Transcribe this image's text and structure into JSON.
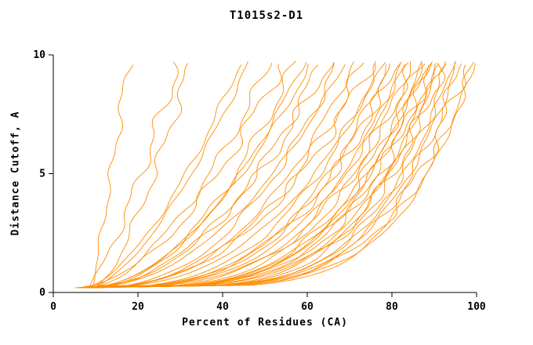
{
  "chart_data": {
    "type": "line",
    "title": "T1015s2-D1",
    "xlabel": "Percent of Residues (CA)",
    "ylabel": "Distance Cutoff, A",
    "xlim": [
      0,
      100
    ],
    "ylim": [
      0,
      10
    ],
    "x_ticks": [
      0,
      20,
      40,
      60,
      80,
      100
    ],
    "y_ticks": [
      0,
      5,
      10
    ],
    "grid": false,
    "legend": "none",
    "line_color": "#ff8c00",
    "axis_color": "#000000",
    "background": "#ffffff",
    "curve_model": "Each model curve: x = x_start + (x_at_top - x_start) * ((y - 0.2)/(10 - 0.2))^(1/shape), sampled for y in [0.2, ~9.7]",
    "series_format": [
      "x_start_percent",
      "x_at_top_percent",
      "shape_exponent"
    ],
    "series": [
      [
        9,
        18,
        1.1
      ],
      [
        8,
        30,
        1.3
      ],
      [
        10,
        33,
        1.4
      ],
      [
        7,
        45,
        1.6
      ],
      [
        9,
        47,
        1.5
      ],
      [
        6,
        52,
        1.8
      ],
      [
        8,
        55,
        1.7
      ],
      [
        10,
        58,
        1.9
      ],
      [
        7,
        60,
        2.0
      ],
      [
        9,
        62,
        1.8
      ],
      [
        6,
        64,
        2.2
      ],
      [
        8,
        66,
        2.0
      ],
      [
        10,
        68,
        2.3
      ],
      [
        7,
        70,
        2.1
      ],
      [
        9,
        72,
        2.4
      ],
      [
        6,
        74,
        2.6
      ],
      [
        8,
        76,
        2.4
      ],
      [
        10,
        78,
        2.8
      ],
      [
        7,
        79,
        2.6
      ],
      [
        9,
        80,
        3.0
      ],
      [
        6,
        81,
        3.2
      ],
      [
        8,
        82,
        3.0
      ],
      [
        10,
        83,
        3.4
      ],
      [
        7,
        84,
        3.2
      ],
      [
        9,
        85,
        3.6
      ],
      [
        6,
        86,
        3.4
      ],
      [
        8,
        87,
        3.8
      ],
      [
        10,
        88,
        3.6
      ],
      [
        7,
        88,
        4.0
      ],
      [
        9,
        89,
        3.8
      ],
      [
        6,
        90,
        4.2
      ],
      [
        8,
        90,
        4.0
      ],
      [
        10,
        91,
        4.4
      ],
      [
        7,
        92,
        4.2
      ],
      [
        9,
        92,
        4.6
      ],
      [
        6,
        93,
        4.4
      ],
      [
        8,
        94,
        4.8
      ],
      [
        10,
        95,
        4.6
      ],
      [
        7,
        96,
        5.0
      ],
      [
        9,
        97,
        4.8
      ],
      [
        6,
        98,
        5.2
      ],
      [
        8,
        100,
        5.0
      ],
      [
        5,
        100,
        5.5
      ]
    ]
  }
}
